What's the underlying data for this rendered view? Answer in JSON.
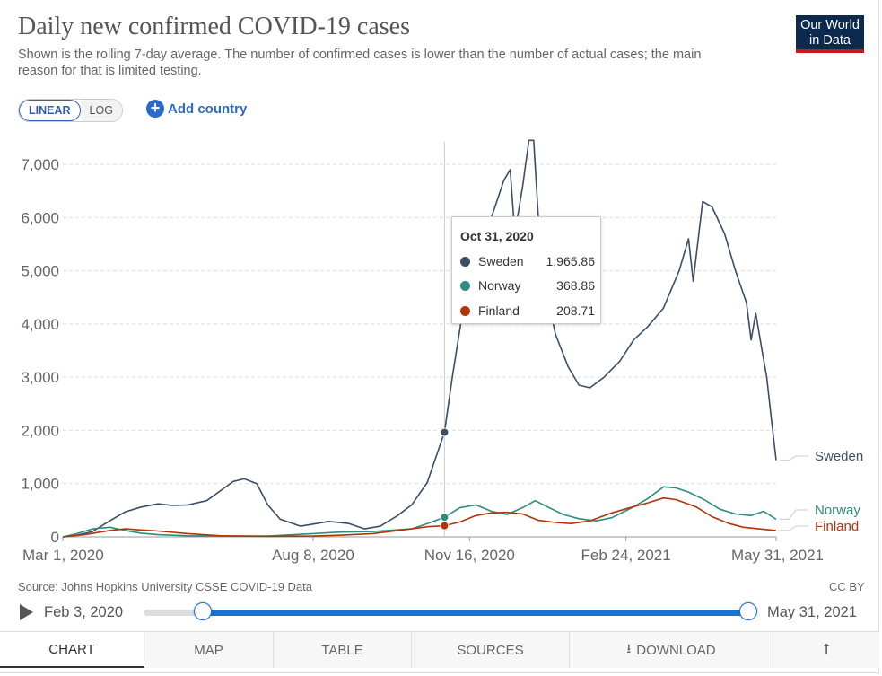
{
  "header": {
    "title": "Daily new confirmed COVID-19 cases",
    "subtitle": "Shown is the rolling 7-day average. The number of confirmed cases is lower than the number of actual cases; the main reason for that is limited testing.",
    "logo_line1": "Our World",
    "logo_line2": "in Data"
  },
  "controls": {
    "linear_label": "LINEAR",
    "log_label": "LOG",
    "add_country_label": "Add country"
  },
  "chart_data": {
    "type": "line",
    "title": "Daily new confirmed COVID-19 cases",
    "subtitle": "Shown is the rolling 7-day average. The number of confirmed cases is lower than the number of actual cases; the main reason for that is limited testing.",
    "x_range": [
      "2020-03-01",
      "2021-05-31"
    ],
    "ylim": [
      0,
      7000
    ],
    "y_ticks": [
      0,
      1000,
      2000,
      3000,
      4000,
      5000,
      6000,
      7000
    ],
    "y_tick_labels": [
      "0",
      "1,000",
      "2,000",
      "3,000",
      "4,000",
      "5,000",
      "6,000",
      "7,000"
    ],
    "x_ticks": [
      "2020-03-01",
      "2020-08-08",
      "2020-11-16",
      "2021-02-24",
      "2021-05-31"
    ],
    "x_tick_labels": [
      "Mar 1, 2020",
      "Aug 8, 2020",
      "Nov 16, 2020",
      "Feb 24, 2021",
      "May 31, 2021"
    ],
    "grid": true,
    "legend": "right end labels",
    "series": [
      {
        "name": "Sweden",
        "color": "#3c4e66",
        "points": [
          [
            "2020-03-01",
            0
          ],
          [
            "2020-03-10",
            30
          ],
          [
            "2020-03-20",
            100
          ],
          [
            "2020-03-31",
            300
          ],
          [
            "2020-04-10",
            470
          ],
          [
            "2020-04-20",
            560
          ],
          [
            "2020-05-01",
            620
          ],
          [
            "2020-05-10",
            590
          ],
          [
            "2020-05-20",
            600
          ],
          [
            "2020-06-01",
            680
          ],
          [
            "2020-06-10",
            870
          ],
          [
            "2020-06-18",
            1040
          ],
          [
            "2020-06-25",
            1090
          ],
          [
            "2020-07-03",
            1000
          ],
          [
            "2020-07-10",
            600
          ],
          [
            "2020-07-18",
            330
          ],
          [
            "2020-07-31",
            200
          ],
          [
            "2020-08-08",
            240
          ],
          [
            "2020-08-18",
            290
          ],
          [
            "2020-08-31",
            250
          ],
          [
            "2020-09-10",
            150
          ],
          [
            "2020-09-20",
            200
          ],
          [
            "2020-10-01",
            400
          ],
          [
            "2020-10-10",
            600
          ],
          [
            "2020-10-20",
            1020
          ],
          [
            "2020-10-31",
            1966
          ],
          [
            "2020-11-05",
            3000
          ],
          [
            "2020-11-12",
            4300
          ],
          [
            "2020-11-20",
            5200
          ],
          [
            "2020-11-30",
            6000
          ],
          [
            "2020-12-08",
            6700
          ],
          [
            "2020-12-12",
            6900
          ],
          [
            "2020-12-15",
            5700
          ],
          [
            "2020-12-20",
            6600
          ],
          [
            "2020-12-24",
            7450
          ],
          [
            "2020-12-27",
            7450
          ],
          [
            "2020-12-30",
            6000
          ],
          [
            "2021-01-04",
            4600
          ],
          [
            "2021-01-10",
            3800
          ],
          [
            "2021-01-18",
            3200
          ],
          [
            "2021-01-25",
            2850
          ],
          [
            "2021-02-01",
            2800
          ],
          [
            "2021-02-10",
            3000
          ],
          [
            "2021-02-20",
            3300
          ],
          [
            "2021-03-01",
            3700
          ],
          [
            "2021-03-10",
            3950
          ],
          [
            "2021-03-20",
            4300
          ],
          [
            "2021-03-30",
            5000
          ],
          [
            "2021-04-05",
            5600
          ],
          [
            "2021-04-08",
            4800
          ],
          [
            "2021-04-14",
            6300
          ],
          [
            "2021-04-20",
            6200
          ],
          [
            "2021-04-28",
            5700
          ],
          [
            "2021-05-05",
            5000
          ],
          [
            "2021-05-12",
            4400
          ],
          [
            "2021-05-15",
            3700
          ],
          [
            "2021-05-18",
            4200
          ],
          [
            "2021-05-22",
            3500
          ],
          [
            "2021-05-25",
            3000
          ],
          [
            "2021-05-28",
            2200
          ],
          [
            "2021-05-31",
            1440
          ]
        ]
      },
      {
        "name": "Norway",
        "color": "#2c8c80",
        "points": [
          [
            "2020-03-01",
            0
          ],
          [
            "2020-03-10",
            60
          ],
          [
            "2020-03-20",
            150
          ],
          [
            "2020-03-31",
            180
          ],
          [
            "2020-04-10",
            120
          ],
          [
            "2020-04-20",
            70
          ],
          [
            "2020-05-01",
            40
          ],
          [
            "2020-05-20",
            20
          ],
          [
            "2020-06-10",
            15
          ],
          [
            "2020-07-10",
            15
          ],
          [
            "2020-08-08",
            60
          ],
          [
            "2020-08-25",
            90
          ],
          [
            "2020-09-15",
            100
          ],
          [
            "2020-10-10",
            150
          ],
          [
            "2020-10-20",
            250
          ],
          [
            "2020-10-31",
            369
          ],
          [
            "2020-11-10",
            550
          ],
          [
            "2020-11-20",
            600
          ],
          [
            "2020-11-30",
            480
          ],
          [
            "2020-12-10",
            420
          ],
          [
            "2020-12-20",
            550
          ],
          [
            "2020-12-28",
            680
          ],
          [
            "2021-01-05",
            560
          ],
          [
            "2021-01-15",
            420
          ],
          [
            "2021-01-25",
            340
          ],
          [
            "2021-02-05",
            300
          ],
          [
            "2021-02-15",
            360
          ],
          [
            "2021-02-28",
            550
          ],
          [
            "2021-03-10",
            720
          ],
          [
            "2021-03-20",
            940
          ],
          [
            "2021-03-28",
            920
          ],
          [
            "2021-04-05",
            840
          ],
          [
            "2021-04-15",
            700
          ],
          [
            "2021-04-25",
            520
          ],
          [
            "2021-05-05",
            430
          ],
          [
            "2021-05-15",
            400
          ],
          [
            "2021-05-23",
            480
          ],
          [
            "2021-05-31",
            330
          ]
        ]
      },
      {
        "name": "Finland",
        "color": "#b13507",
        "points": [
          [
            "2020-03-01",
            0
          ],
          [
            "2020-03-15",
            40
          ],
          [
            "2020-03-31",
            120
          ],
          [
            "2020-04-10",
            150
          ],
          [
            "2020-04-20",
            130
          ],
          [
            "2020-05-01",
            110
          ],
          [
            "2020-05-20",
            60
          ],
          [
            "2020-06-10",
            20
          ],
          [
            "2020-07-10",
            10
          ],
          [
            "2020-08-08",
            15
          ],
          [
            "2020-08-25",
            30
          ],
          [
            "2020-09-15",
            60
          ],
          [
            "2020-10-10",
            150
          ],
          [
            "2020-10-20",
            190
          ],
          [
            "2020-10-31",
            209
          ],
          [
            "2020-11-10",
            280
          ],
          [
            "2020-11-20",
            400
          ],
          [
            "2020-11-30",
            450
          ],
          [
            "2020-12-10",
            460
          ],
          [
            "2020-12-20",
            430
          ],
          [
            "2020-12-30",
            310
          ],
          [
            "2021-01-10",
            270
          ],
          [
            "2021-01-20",
            250
          ],
          [
            "2021-02-01",
            300
          ],
          [
            "2021-02-15",
            450
          ],
          [
            "2021-02-28",
            560
          ],
          [
            "2021-03-10",
            640
          ],
          [
            "2021-03-20",
            730
          ],
          [
            "2021-03-28",
            700
          ],
          [
            "2021-04-10",
            560
          ],
          [
            "2021-04-20",
            380
          ],
          [
            "2021-05-01",
            250
          ],
          [
            "2021-05-10",
            180
          ],
          [
            "2021-05-20",
            150
          ],
          [
            "2021-05-31",
            120
          ]
        ]
      }
    ],
    "hover": {
      "date": "2020-10-31",
      "date_label": "Oct 31, 2020",
      "entries": [
        {
          "name": "Sweden",
          "value": 1965.86,
          "value_label": "1,965.86",
          "color": "#3c4e66"
        },
        {
          "name": "Norway",
          "value": 368.86,
          "value_label": "368.86",
          "color": "#2c8c80"
        },
        {
          "name": "Finland",
          "value": 208.71,
          "value_label": "208.71",
          "color": "#b13507"
        }
      ]
    }
  },
  "footer": {
    "source": "Source: Johns Hopkins University CSSE COVID-19 Data",
    "license": "CC BY"
  },
  "timeline": {
    "start_label": "Feb 3, 2020",
    "end_label": "May 31, 2021",
    "start_fraction": 0.056,
    "end_fraction": 1.0
  },
  "tabs": [
    {
      "label": "CHART",
      "active": true
    },
    {
      "label": "MAP",
      "active": false
    },
    {
      "label": "TABLE",
      "active": false
    },
    {
      "label": "SOURCES",
      "active": false
    },
    {
      "label": "DOWNLOAD",
      "active": false
    }
  ],
  "icons": {
    "play": "play-icon",
    "add": "plus-circle-icon",
    "download": "download-icon",
    "share": "share-icon"
  }
}
